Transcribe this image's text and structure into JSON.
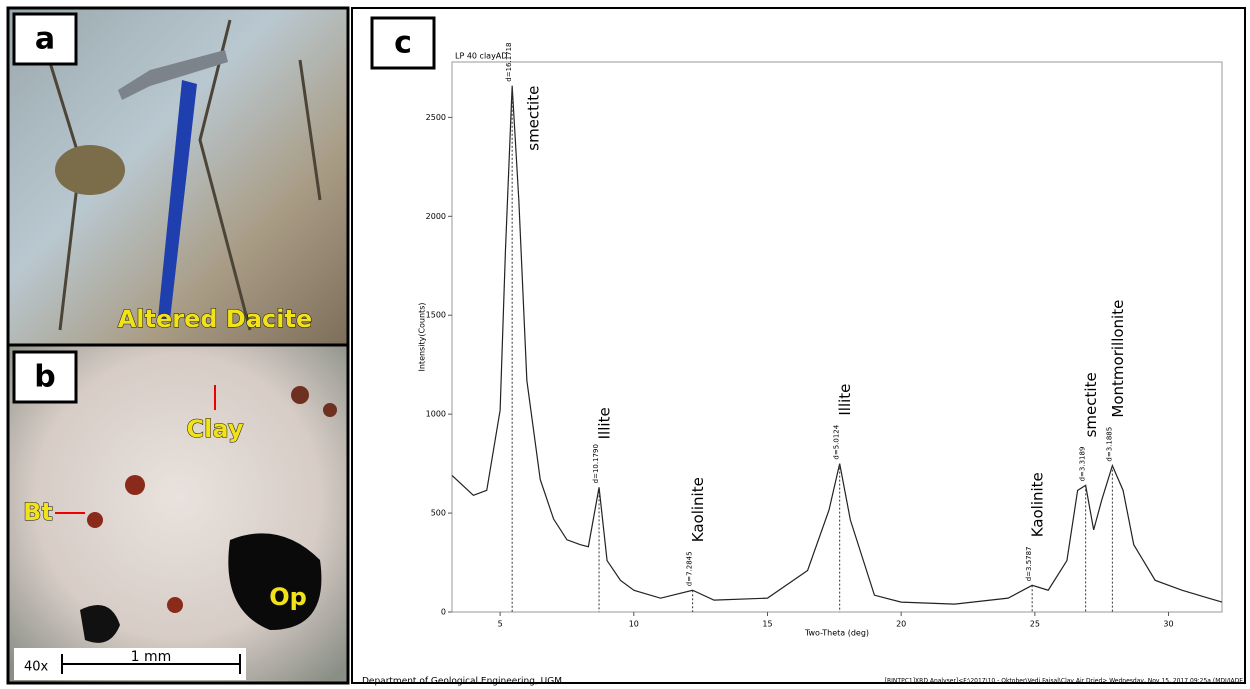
{
  "panels": {
    "a": {
      "label": "a",
      "caption": "Altered Dacite"
    },
    "b": {
      "label": "b",
      "labels": [
        "Clay",
        "Bt",
        "Op"
      ],
      "magnification": "40x",
      "scale": "1 mm"
    }
  },
  "chart_data": {
    "type": "line",
    "panel_label": "c",
    "title": "LP 40 clayAD",
    "xlabel": "Two-Theta (deg)",
    "ylabel": "Intensity(Counts)",
    "xlim": [
      3.2,
      32
    ],
    "ylim": [
      0,
      2780
    ],
    "xticks": [
      5,
      10,
      15,
      20,
      25,
      30
    ],
    "yticks": [
      0,
      500,
      1000,
      1500,
      2000,
      2500
    ],
    "color": "#222222",
    "x": [
      3.2,
      4.0,
      4.5,
      5.0,
      5.2,
      5.45,
      5.7,
      6.0,
      6.5,
      7.0,
      7.5,
      8.0,
      8.3,
      8.7,
      9.0,
      9.5,
      10,
      11,
      12.2,
      13,
      15,
      16.5,
      17.3,
      17.7,
      18.1,
      19,
      20,
      22,
      24,
      24.9,
      25.5,
      26.2,
      26.6,
      26.9,
      27.2,
      27.5,
      27.9,
      28.3,
      28.7,
      29.5,
      30.5,
      31.5,
      32
    ],
    "values": [
      690,
      590,
      615,
      1020,
      1830,
      2660,
      2080,
      1170,
      670,
      470,
      365,
      340,
      330,
      630,
      260,
      160,
      110,
      70,
      110,
      60,
      70,
      210,
      515,
      750,
      465,
      85,
      50,
      40,
      70,
      135,
      110,
      260,
      615,
      640,
      415,
      565,
      740,
      615,
      340,
      160,
      110,
      70,
      50
    ],
    "annotations": [
      {
        "x": 5.45,
        "y": 2660,
        "text": "smectite",
        "d": "d=16.1718"
      },
      {
        "x": 8.7,
        "y": 630,
        "text": "Illite",
        "d": "d=10.1790"
      },
      {
        "x": 12.2,
        "y": 110,
        "text": "Kaolinite",
        "d": "d=7.2845"
      },
      {
        "x": 17.7,
        "y": 750,
        "text": "Illite",
        "d": "d=5.0124"
      },
      {
        "x": 24.9,
        "y": 135,
        "text": "Kaolinite",
        "d": "d=3.5787"
      },
      {
        "x": 26.9,
        "y": 640,
        "text": "smectite",
        "d": "d=3.3189"
      },
      {
        "x": 27.9,
        "y": 740,
        "text": "Montmorillonite",
        "d": "d=3.1885"
      }
    ],
    "footer_left": "Department of Geological Engineering, UGM",
    "footer_right": "[RINTPC1]XRD Analyser]<F:\\2017\\10 - Oktober\\Vedi Faisal\\Clay Air Dried> Wednesday, Nov 15, 2017 09:25a (MDI/JADE"
  }
}
